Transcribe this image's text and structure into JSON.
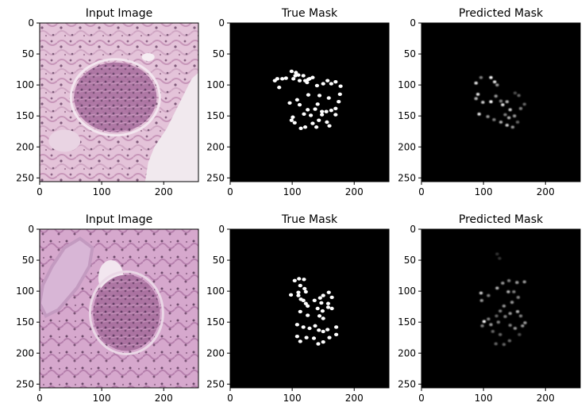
{
  "chart_data": [
    {
      "type": "image",
      "image_kind": "histology",
      "title": "Input Image",
      "xlim": [
        0,
        256
      ],
      "ylim": [
        256,
        0
      ],
      "xticks": [
        0,
        100,
        200
      ],
      "yticks": [
        0,
        50,
        100,
        150,
        200,
        250
      ],
      "grid": false,
      "legend": "none"
    },
    {
      "type": "image",
      "image_kind": "binary-mask",
      "title": "True Mask",
      "xlim": [
        0,
        256
      ],
      "ylim": [
        256,
        0
      ],
      "xticks": [
        0,
        100,
        200
      ],
      "yticks": [
        0,
        50,
        100,
        150,
        200,
        250
      ],
      "grid": false,
      "legend": "none",
      "points": [
        [
          72,
          93
        ],
        [
          76,
          90
        ],
        [
          79,
          104
        ],
        [
          84,
          90
        ],
        [
          90,
          89
        ],
        [
          99,
          78
        ],
        [
          102,
          90
        ],
        [
          105,
          85
        ],
        [
          106,
          80
        ],
        [
          110,
          84
        ],
        [
          112,
          93
        ],
        [
          118,
          85
        ],
        [
          121,
          93
        ],
        [
          124,
          96
        ],
        [
          126,
          91
        ],
        [
          128,
          90
        ],
        [
          133,
          88
        ],
        [
          140,
          101
        ],
        [
          150,
          98
        ],
        [
          157,
          93
        ],
        [
          163,
          98
        ],
        [
          170,
          95
        ],
        [
          178,
          102
        ],
        [
          96,
          129
        ],
        [
          108,
          124
        ],
        [
          112,
          132
        ],
        [
          119,
          147
        ],
        [
          125,
          140
        ],
        [
          130,
          149
        ],
        [
          137,
          139
        ],
        [
          141,
          131
        ],
        [
          148,
          143
        ],
        [
          155,
          143
        ],
        [
          163,
          141
        ],
        [
          170,
          138
        ],
        [
          175,
          127
        ],
        [
          177,
          115
        ],
        [
          159,
          121
        ],
        [
          144,
          117
        ],
        [
          126,
          116
        ],
        [
          99,
          157
        ],
        [
          101,
          152
        ],
        [
          104,
          161
        ],
        [
          114,
          170
        ],
        [
          121,
          168
        ],
        [
          133,
          162
        ],
        [
          143,
          157
        ],
        [
          148,
          148
        ],
        [
          156,
          160
        ],
        [
          170,
          148
        ],
        [
          160,
          166
        ],
        [
          139,
          168
        ]
      ]
    },
    {
      "type": "image",
      "image_kind": "probability-mask",
      "title": "Predicted Mask",
      "xlim": [
        0,
        256
      ],
      "ylim": [
        256,
        0
      ],
      "xticks": [
        0,
        100,
        200
      ],
      "yticks": [
        0,
        50,
        100,
        150,
        200,
        250
      ],
      "grid": false,
      "legend": "none",
      "points": [
        [
          88,
          97,
          0.9
        ],
        [
          96,
          88,
          0.5
        ],
        [
          112,
          88,
          1
        ],
        [
          118,
          95,
          0.9
        ],
        [
          122,
          100,
          0.6
        ],
        [
          91,
          115,
          0.9
        ],
        [
          88,
          122,
          0.7
        ],
        [
          99,
          128,
          0.8
        ],
        [
          112,
          127,
          1
        ],
        [
          120,
          118,
          0.6
        ],
        [
          128,
          126,
          0.5
        ],
        [
          131,
          132,
          0.9
        ],
        [
          138,
          127,
          0.7
        ],
        [
          143,
          140,
          0.8
        ],
        [
          135,
          148,
          0.5
        ],
        [
          141,
          153,
          0.7
        ],
        [
          150,
          150,
          0.6
        ],
        [
          160,
          138,
          0.5
        ],
        [
          166,
          131,
          0.4
        ],
        [
          157,
          117,
          0.4
        ],
        [
          151,
          113,
          0.3
        ],
        [
          93,
          147,
          0.9
        ],
        [
          107,
          151,
          0.6
        ],
        [
          117,
          156,
          0.5
        ],
        [
          128,
          160,
          0.7
        ],
        [
          138,
          165,
          0.8
        ],
        [
          147,
          168,
          0.6
        ],
        [
          155,
          160,
          0.4
        ]
      ]
    },
    {
      "type": "image",
      "image_kind": "histology",
      "title": "Input Image",
      "xlim": [
        0,
        256
      ],
      "ylim": [
        256,
        0
      ],
      "xticks": [
        0,
        100,
        200
      ],
      "yticks": [
        0,
        50,
        100,
        150,
        200,
        250
      ],
      "grid": false,
      "legend": "none"
    },
    {
      "type": "image",
      "image_kind": "binary-mask",
      "title": "True Mask",
      "xlim": [
        0,
        256
      ],
      "ylim": [
        256,
        0
      ],
      "xticks": [
        0,
        100,
        200
      ],
      "yticks": [
        0,
        50,
        100,
        150,
        200,
        250
      ],
      "grid": false,
      "legend": "none",
      "points": [
        [
          104,
          83
        ],
        [
          111,
          80
        ],
        [
          119,
          81
        ],
        [
          113,
          91
        ],
        [
          120,
          96
        ],
        [
          122,
          101
        ],
        [
          110,
          102
        ],
        [
          98,
          106
        ],
        [
          110,
          107
        ],
        [
          114,
          113
        ],
        [
          118,
          115
        ],
        [
          122,
          120
        ],
        [
          125,
          124
        ],
        [
          136,
          115
        ],
        [
          141,
          128
        ],
        [
          149,
          132
        ],
        [
          158,
          126
        ],
        [
          164,
          128
        ],
        [
          158,
          120
        ],
        [
          147,
          119
        ],
        [
          150,
          107
        ],
        [
          159,
          102
        ],
        [
          164,
          110
        ],
        [
          145,
          111
        ],
        [
          113,
          133
        ],
        [
          125,
          139
        ],
        [
          144,
          140
        ],
        [
          150,
          144
        ],
        [
          108,
          154
        ],
        [
          118,
          158
        ],
        [
          128,
          160
        ],
        [
          137,
          156
        ],
        [
          143,
          163
        ],
        [
          150,
          165
        ],
        [
          157,
          162
        ],
        [
          171,
          158
        ],
        [
          108,
          173
        ],
        [
          113,
          181
        ],
        [
          123,
          175
        ],
        [
          135,
          176
        ],
        [
          142,
          185
        ],
        [
          150,
          182
        ],
        [
          160,
          175
        ],
        [
          171,
          170
        ]
      ]
    },
    {
      "type": "image",
      "image_kind": "probability-mask",
      "title": "Predicted Mask",
      "xlim": [
        0,
        256
      ],
      "ylim": [
        256,
        0
      ],
      "xticks": [
        0,
        100,
        200
      ],
      "yticks": [
        0,
        50,
        100,
        150,
        200,
        250
      ],
      "grid": false,
      "legend": "none",
      "points": [
        [
          122,
          40,
          0.2
        ],
        [
          126,
          47,
          0.2
        ],
        [
          96,
          103,
          0.8
        ],
        [
          97,
          115,
          0.6
        ],
        [
          108,
          107,
          0.5
        ],
        [
          122,
          95,
          0.7
        ],
        [
          131,
          87,
          0.6
        ],
        [
          141,
          83,
          0.5
        ],
        [
          154,
          86,
          0.6
        ],
        [
          166,
          85,
          0.6
        ],
        [
          140,
          101,
          0.7
        ],
        [
          149,
          101,
          0.5
        ],
        [
          156,
          110,
          0.5
        ],
        [
          146,
          118,
          0.6
        ],
        [
          133,
          124,
          0.6
        ],
        [
          127,
          132,
          0.5
        ],
        [
          121,
          140,
          0.4
        ],
        [
          108,
          145,
          0.5
        ],
        [
          101,
          149,
          1
        ],
        [
          98,
          156,
          0.5
        ],
        [
          112,
          154,
          0.6
        ],
        [
          124,
          150,
          0.5
        ],
        [
          135,
          141,
          0.5
        ],
        [
          143,
          136,
          0.6
        ],
        [
          155,
          133,
          0.7
        ],
        [
          160,
          140,
          0.5
        ],
        [
          167,
          151,
          0.6
        ],
        [
          163,
          156,
          0.6
        ],
        [
          143,
          155,
          0.5
        ],
        [
          151,
          160,
          0.6
        ],
        [
          115,
          165,
          0.4
        ],
        [
          127,
          170,
          0.4
        ],
        [
          120,
          185,
          0.4
        ],
        [
          133,
          186,
          0.4
        ],
        [
          142,
          180,
          0.4
        ],
        [
          158,
          170,
          0.3
        ]
      ]
    }
  ]
}
